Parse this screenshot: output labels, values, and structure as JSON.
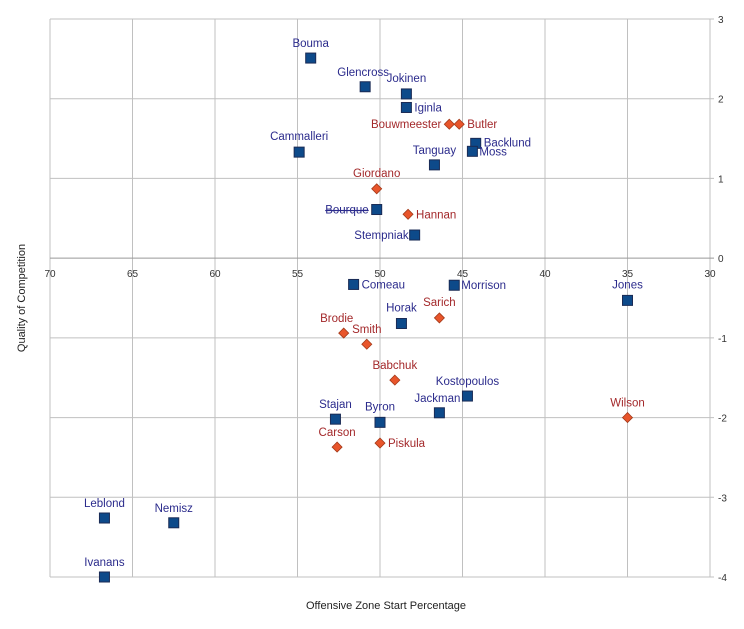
{
  "chart_data": {
    "type": "scatter",
    "title": "",
    "xlabel": "Offensive Zone Start Percentage",
    "ylabel": "Quality of Competition",
    "xlim": [
      70,
      30
    ],
    "ylim": [
      -4,
      3
    ],
    "x_reversed": true,
    "x_ticks": [
      70,
      65,
      60,
      55,
      50,
      45,
      40,
      35,
      30
    ],
    "y_ticks": [
      3,
      2,
      1,
      0,
      -1,
      -2,
      -3,
      -4
    ],
    "y_axis_side": "right",
    "grid": true,
    "legend": "none",
    "colors": {
      "forward": "#0d4a8a",
      "defense": "#e8552b",
      "forward_label": "#2b2b8c",
      "defense_label": "#a3282a",
      "grid": "#c0c0c0"
    },
    "series": [
      {
        "marker": "square",
        "color": "#0d4a8a",
        "points": [
          {
            "name": "Bouma",
            "x": 54.2,
            "y": 2.51
          },
          {
            "name": "Glencross",
            "x": 50.9,
            "y": 2.15
          },
          {
            "name": "Jokinen",
            "x": 48.4,
            "y": 2.06
          },
          {
            "name": "Iginla",
            "x": 48.4,
            "y": 1.89
          },
          {
            "name": "Backlund",
            "x": 44.2,
            "y": 1.44
          },
          {
            "name": "Moss",
            "x": 44.4,
            "y": 1.34
          },
          {
            "name": "Cammalleri",
            "x": 54.9,
            "y": 1.33
          },
          {
            "name": "Tanguay",
            "x": 46.7,
            "y": 1.17
          },
          {
            "name": "Bourque",
            "x": 50.2,
            "y": 0.61
          },
          {
            "name": "Stempniak",
            "x": 47.9,
            "y": 0.29
          },
          {
            "name": "Comeau",
            "x": 51.6,
            "y": -0.33
          },
          {
            "name": "Morrison",
            "x": 45.5,
            "y": -0.34
          },
          {
            "name": "Jones",
            "x": 35.0,
            "y": -0.53
          },
          {
            "name": "Horak",
            "x": 48.7,
            "y": -0.82
          },
          {
            "name": "Kostopoulos",
            "x": 44.7,
            "y": -1.73
          },
          {
            "name": "Jackman",
            "x": 46.4,
            "y": -1.94
          },
          {
            "name": "Stajan",
            "x": 52.7,
            "y": -2.02
          },
          {
            "name": "Byron",
            "x": 50.0,
            "y": -2.06
          },
          {
            "name": "Leblond",
            "x": 66.7,
            "y": -3.26
          },
          {
            "name": "Nemisz",
            "x": 62.5,
            "y": -3.32
          },
          {
            "name": "Ivanans",
            "x": 66.7,
            "y": -4.0
          }
        ]
      },
      {
        "marker": "diamond",
        "color": "#e8552b",
        "points": [
          {
            "name": "Bouwmeester",
            "x": 45.8,
            "y": 1.68
          },
          {
            "name": "Butler",
            "x": 45.2,
            "y": 1.68
          },
          {
            "name": "Giordano",
            "x": 50.2,
            "y": 0.87
          },
          {
            "name": "Hannan",
            "x": 48.3,
            "y": 0.55
          },
          {
            "name": "Sarich",
            "x": 46.4,
            "y": -0.75
          },
          {
            "name": "Brodie",
            "x": 52.2,
            "y": -0.94
          },
          {
            "name": "Smith",
            "x": 50.8,
            "y": -1.08
          },
          {
            "name": "Babchuk",
            "x": 49.1,
            "y": -1.53
          },
          {
            "name": "Wilson",
            "x": 35.0,
            "y": -2.0
          },
          {
            "name": "Carson",
            "x": 52.6,
            "y": -2.37
          },
          {
            "name": "Piskula",
            "x": 50.0,
            "y": -2.32
          }
        ]
      }
    ]
  }
}
